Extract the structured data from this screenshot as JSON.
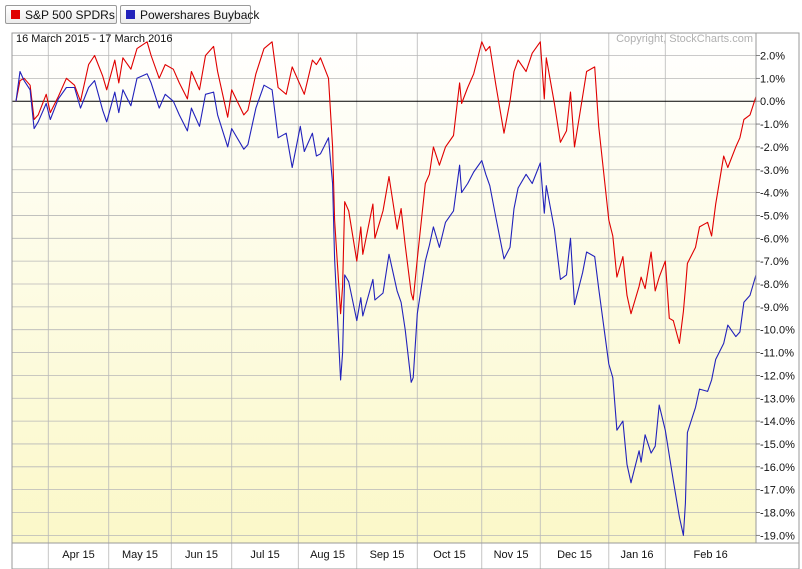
{
  "legend": [
    {
      "label": "S&P 500 SPDRs",
      "color": "#e00000"
    },
    {
      "label": "Powershares Buyback",
      "color": "#2222bb"
    }
  ],
  "date_range": "16 March 2015 - 17 March 2016",
  "copyright": "Copyright, StockCharts.com",
  "colors": {
    "grid": "#b8b8b8",
    "zero_line": "#000000",
    "bg_top": "#ffffff",
    "bg_bottom": "#fbf8c8"
  },
  "chart_data": {
    "type": "line",
    "ylim": [
      -19.5,
      2.6
    ],
    "y_ticks": [
      2,
      1,
      0,
      -1,
      -2,
      -3,
      -4,
      -5,
      -6,
      -7,
      -8,
      -9,
      -10,
      -11,
      -12,
      -13,
      -14,
      -15,
      -16,
      -17,
      -18,
      -19
    ],
    "y_tick_labels": [
      "2.0%",
      "1.0%",
      "0.0%",
      "-1.0%",
      "-2.0%",
      "-3.0%",
      "-4.0%",
      "-5.0%",
      "-6.0%",
      "-7.0%",
      "-8.0%",
      "-9.0%",
      "-10.0%",
      "-11.0%",
      "-12.0%",
      "-13.0%",
      "-14.0%",
      "-15.0%",
      "-16.0%",
      "-17.0%",
      "-18.0%",
      "-19.0%"
    ],
    "x_domain": [
      "2015-03-16",
      "2016-03-17"
    ],
    "x_gridlines": [
      "2015-04-01",
      "2015-05-01",
      "2015-06-01",
      "2015-07-01",
      "2015-08-03",
      "2015-09-01",
      "2015-10-01",
      "2015-11-02",
      "2015-12-01",
      "2016-01-04",
      "2016-02-01"
    ],
    "x_tick_labels": [
      "Apr 15",
      "May 15",
      "Jun 15",
      "Jul 15",
      "Aug 15",
      "Sep 15",
      "Oct 15",
      "Nov 15",
      "Dec 15",
      "Jan 16",
      "Feb 16"
    ],
    "series": [
      {
        "name": "S&P 500 SPDRs",
        "color": "#e00000",
        "points": [
          [
            "2015-03-16",
            0.0
          ],
          [
            "2015-03-18",
            0.9
          ],
          [
            "2015-03-20",
            1.0
          ],
          [
            "2015-03-23",
            0.7
          ],
          [
            "2015-03-25",
            -0.8
          ],
          [
            "2015-03-27",
            -0.6
          ],
          [
            "2015-03-31",
            0.3
          ],
          [
            "2015-04-02",
            -0.5
          ],
          [
            "2015-04-06",
            0.2
          ],
          [
            "2015-04-10",
            1.0
          ],
          [
            "2015-04-14",
            0.7
          ],
          [
            "2015-04-17",
            0.0
          ],
          [
            "2015-04-21",
            1.6
          ],
          [
            "2015-04-24",
            2.0
          ],
          [
            "2015-04-28",
            1.1
          ],
          [
            "2015-04-30",
            0.5
          ],
          [
            "2015-05-04",
            1.8
          ],
          [
            "2015-05-06",
            0.8
          ],
          [
            "2015-05-08",
            1.9
          ],
          [
            "2015-05-12",
            1.4
          ],
          [
            "2015-05-15",
            2.3
          ],
          [
            "2015-05-20",
            2.6
          ],
          [
            "2015-05-22",
            2.0
          ],
          [
            "2015-05-26",
            1.0
          ],
          [
            "2015-05-29",
            1.6
          ],
          [
            "2015-06-02",
            1.4
          ],
          [
            "2015-06-05",
            0.8
          ],
          [
            "2015-06-09",
            0.1
          ],
          [
            "2015-06-11",
            1.3
          ],
          [
            "2015-06-15",
            0.5
          ],
          [
            "2015-06-18",
            2.0
          ],
          [
            "2015-06-22",
            2.4
          ],
          [
            "2015-06-24",
            1.3
          ],
          [
            "2015-06-29",
            -0.7
          ],
          [
            "2015-07-01",
            0.5
          ],
          [
            "2015-07-07",
            -0.6
          ],
          [
            "2015-07-09",
            -0.4
          ],
          [
            "2015-07-13",
            1.2
          ],
          [
            "2015-07-17",
            2.3
          ],
          [
            "2015-07-21",
            2.6
          ],
          [
            "2015-07-24",
            0.6
          ],
          [
            "2015-07-28",
            0.3
          ],
          [
            "2015-07-31",
            1.5
          ],
          [
            "2015-08-04",
            0.7
          ],
          [
            "2015-08-06",
            0.3
          ],
          [
            "2015-08-10",
            1.8
          ],
          [
            "2015-08-12",
            1.6
          ],
          [
            "2015-08-14",
            1.9
          ],
          [
            "2015-08-18",
            1.0
          ],
          [
            "2015-08-20",
            -2.0
          ],
          [
            "2015-08-21",
            -5.2
          ],
          [
            "2015-08-24",
            -9.3
          ],
          [
            "2015-08-25",
            -8.1
          ],
          [
            "2015-08-26",
            -4.4
          ],
          [
            "2015-08-28",
            -4.8
          ],
          [
            "2015-09-01",
            -7.0
          ],
          [
            "2015-09-03",
            -5.5
          ],
          [
            "2015-09-04",
            -6.7
          ],
          [
            "2015-09-09",
            -4.5
          ],
          [
            "2015-09-10",
            -6.0
          ],
          [
            "2015-09-14",
            -4.8
          ],
          [
            "2015-09-17",
            -3.3
          ],
          [
            "2015-09-21",
            -5.6
          ],
          [
            "2015-09-23",
            -4.7
          ],
          [
            "2015-09-25",
            -6.3
          ],
          [
            "2015-09-28",
            -8.4
          ],
          [
            "2015-09-29",
            -8.7
          ],
          [
            "2015-10-01",
            -6.9
          ],
          [
            "2015-10-05",
            -3.6
          ],
          [
            "2015-10-07",
            -3.2
          ],
          [
            "2015-10-09",
            -2.0
          ],
          [
            "2015-10-12",
            -2.8
          ],
          [
            "2015-10-15",
            -2.0
          ],
          [
            "2015-10-19",
            -1.5
          ],
          [
            "2015-10-22",
            0.8
          ],
          [
            "2015-10-23",
            -0.1
          ],
          [
            "2015-10-26",
            0.6
          ],
          [
            "2015-10-29",
            1.2
          ],
          [
            "2015-11-02",
            2.6
          ],
          [
            "2015-11-04",
            2.2
          ],
          [
            "2015-11-06",
            2.4
          ],
          [
            "2015-11-09",
            0.7
          ],
          [
            "2015-11-13",
            -1.4
          ],
          [
            "2015-11-16",
            0.0
          ],
          [
            "2015-11-18",
            1.3
          ],
          [
            "2015-11-20",
            1.8
          ],
          [
            "2015-11-24",
            1.3
          ],
          [
            "2015-11-27",
            2.1
          ],
          [
            "2015-12-01",
            2.6
          ],
          [
            "2015-12-03",
            0.1
          ],
          [
            "2015-12-04",
            1.9
          ],
          [
            "2015-12-08",
            -0.1
          ],
          [
            "2015-12-11",
            -1.8
          ],
          [
            "2015-12-14",
            -1.3
          ],
          [
            "2015-12-16",
            0.4
          ],
          [
            "2015-12-18",
            -2.0
          ],
          [
            "2015-12-22",
            0.2
          ],
          [
            "2015-12-24",
            1.3
          ],
          [
            "2015-12-28",
            1.5
          ],
          [
            "2015-12-30",
            -1.1
          ],
          [
            "2016-01-04",
            -5.2
          ],
          [
            "2016-01-06",
            -5.9
          ],
          [
            "2016-01-08",
            -7.7
          ],
          [
            "2016-01-11",
            -6.8
          ],
          [
            "2016-01-13",
            -8.5
          ],
          [
            "2016-01-15",
            -9.3
          ],
          [
            "2016-01-19",
            -8.1
          ],
          [
            "2016-01-20",
            -7.7
          ],
          [
            "2016-01-22",
            -8.2
          ],
          [
            "2016-01-25",
            -6.6
          ],
          [
            "2016-01-27",
            -8.3
          ],
          [
            "2016-01-29",
            -7.7
          ],
          [
            "2016-02-01",
            -7.0
          ],
          [
            "2016-02-03",
            -9.5
          ],
          [
            "2016-02-05",
            -9.6
          ],
          [
            "2016-02-08",
            -10.6
          ],
          [
            "2016-02-10",
            -9.2
          ],
          [
            "2016-02-11",
            -8.2
          ],
          [
            "2016-02-12",
            -7.1
          ],
          [
            "2016-02-16",
            -6.4
          ],
          [
            "2016-02-18",
            -5.5
          ],
          [
            "2016-02-22",
            -5.3
          ],
          [
            "2016-02-24",
            -5.9
          ],
          [
            "2016-02-26",
            -4.5
          ],
          [
            "2016-03-01",
            -2.4
          ],
          [
            "2016-03-03",
            -2.9
          ],
          [
            "2016-03-07",
            -2.0
          ],
          [
            "2016-03-09",
            -1.6
          ],
          [
            "2016-03-11",
            -0.8
          ],
          [
            "2016-03-14",
            -0.6
          ],
          [
            "2016-03-17",
            0.2
          ]
        ]
      },
      {
        "name": "Powershares Buyback",
        "color": "#2222bb",
        "points": [
          [
            "2015-03-16",
            0.0
          ],
          [
            "2015-03-18",
            1.3
          ],
          [
            "2015-03-20",
            0.9
          ],
          [
            "2015-03-23",
            0.5
          ],
          [
            "2015-03-25",
            -1.2
          ],
          [
            "2015-03-27",
            -0.9
          ],
          [
            "2015-03-31",
            -0.1
          ],
          [
            "2015-04-02",
            -0.8
          ],
          [
            "2015-04-06",
            0.1
          ],
          [
            "2015-04-10",
            0.6
          ],
          [
            "2015-04-14",
            0.6
          ],
          [
            "2015-04-17",
            -0.3
          ],
          [
            "2015-04-21",
            0.6
          ],
          [
            "2015-04-24",
            0.9
          ],
          [
            "2015-04-28",
            -0.4
          ],
          [
            "2015-04-30",
            -0.9
          ],
          [
            "2015-05-04",
            0.4
          ],
          [
            "2015-05-06",
            -0.5
          ],
          [
            "2015-05-08",
            0.5
          ],
          [
            "2015-05-12",
            -0.2
          ],
          [
            "2015-05-15",
            1.0
          ],
          [
            "2015-05-20",
            1.2
          ],
          [
            "2015-05-22",
            0.8
          ],
          [
            "2015-05-26",
            -0.3
          ],
          [
            "2015-05-29",
            0.3
          ],
          [
            "2015-06-02",
            0.0
          ],
          [
            "2015-06-05",
            -0.6
          ],
          [
            "2015-06-09",
            -1.3
          ],
          [
            "2015-06-11",
            -0.3
          ],
          [
            "2015-06-15",
            -1.1
          ],
          [
            "2015-06-18",
            0.3
          ],
          [
            "2015-06-22",
            0.4
          ],
          [
            "2015-06-24",
            -0.6
          ],
          [
            "2015-06-29",
            -2.0
          ],
          [
            "2015-07-01",
            -1.2
          ],
          [
            "2015-07-07",
            -2.1
          ],
          [
            "2015-07-09",
            -1.9
          ],
          [
            "2015-07-13",
            -0.3
          ],
          [
            "2015-07-17",
            0.7
          ],
          [
            "2015-07-21",
            0.5
          ],
          [
            "2015-07-24",
            -1.6
          ],
          [
            "2015-07-28",
            -1.4
          ],
          [
            "2015-07-31",
            -2.9
          ],
          [
            "2015-08-04",
            -1.1
          ],
          [
            "2015-08-06",
            -2.2
          ],
          [
            "2015-08-10",
            -1.4
          ],
          [
            "2015-08-12",
            -2.4
          ],
          [
            "2015-08-14",
            -2.3
          ],
          [
            "2015-08-18",
            -1.6
          ],
          [
            "2015-08-20",
            -3.6
          ],
          [
            "2015-08-21",
            -6.9
          ],
          [
            "2015-08-24",
            -12.2
          ],
          [
            "2015-08-25",
            -11.0
          ],
          [
            "2015-08-26",
            -7.6
          ],
          [
            "2015-08-28",
            -7.9
          ],
          [
            "2015-09-01",
            -9.6
          ],
          [
            "2015-09-03",
            -8.6
          ],
          [
            "2015-09-04",
            -9.4
          ],
          [
            "2015-09-09",
            -7.8
          ],
          [
            "2015-09-10",
            -8.7
          ],
          [
            "2015-09-14",
            -8.4
          ],
          [
            "2015-09-17",
            -6.7
          ],
          [
            "2015-09-21",
            -8.3
          ],
          [
            "2015-09-23",
            -8.8
          ],
          [
            "2015-09-25",
            -10.0
          ],
          [
            "2015-09-28",
            -12.3
          ],
          [
            "2015-09-29",
            -12.1
          ],
          [
            "2015-10-01",
            -9.3
          ],
          [
            "2015-10-05",
            -7.0
          ],
          [
            "2015-10-07",
            -6.3
          ],
          [
            "2015-10-09",
            -5.5
          ],
          [
            "2015-10-12",
            -6.4
          ],
          [
            "2015-10-15",
            -5.3
          ],
          [
            "2015-10-19",
            -4.8
          ],
          [
            "2015-10-22",
            -2.8
          ],
          [
            "2015-10-23",
            -4.0
          ],
          [
            "2015-10-26",
            -3.6
          ],
          [
            "2015-10-29",
            -3.1
          ],
          [
            "2015-11-02",
            -2.6
          ],
          [
            "2015-11-04",
            -3.2
          ],
          [
            "2015-11-06",
            -3.7
          ],
          [
            "2015-11-09",
            -5.1
          ],
          [
            "2015-11-13",
            -6.9
          ],
          [
            "2015-11-16",
            -6.4
          ],
          [
            "2015-11-18",
            -4.7
          ],
          [
            "2015-11-20",
            -3.8
          ],
          [
            "2015-11-24",
            -3.2
          ],
          [
            "2015-11-27",
            -3.6
          ],
          [
            "2015-12-01",
            -2.7
          ],
          [
            "2015-12-03",
            -4.9
          ],
          [
            "2015-12-04",
            -3.7
          ],
          [
            "2015-12-08",
            -5.6
          ],
          [
            "2015-12-11",
            -7.8
          ],
          [
            "2015-12-14",
            -7.6
          ],
          [
            "2015-12-16",
            -6.0
          ],
          [
            "2015-12-18",
            -8.9
          ],
          [
            "2015-12-22",
            -7.5
          ],
          [
            "2015-12-24",
            -6.6
          ],
          [
            "2015-12-28",
            -6.8
          ],
          [
            "2015-12-30",
            -8.2
          ],
          [
            "2016-01-04",
            -11.5
          ],
          [
            "2016-01-06",
            -12.1
          ],
          [
            "2016-01-08",
            -14.4
          ],
          [
            "2016-01-11",
            -14.0
          ],
          [
            "2016-01-13",
            -15.9
          ],
          [
            "2016-01-15",
            -16.7
          ],
          [
            "2016-01-19",
            -15.3
          ],
          [
            "2016-01-20",
            -15.8
          ],
          [
            "2016-01-22",
            -14.6
          ],
          [
            "2016-01-25",
            -15.4
          ],
          [
            "2016-01-27",
            -15.1
          ],
          [
            "2016-01-29",
            -13.3
          ],
          [
            "2016-02-01",
            -14.4
          ],
          [
            "2016-02-03",
            -15.5
          ],
          [
            "2016-02-05",
            -16.6
          ],
          [
            "2016-02-08",
            -18.2
          ],
          [
            "2016-02-10",
            -19.0
          ],
          [
            "2016-02-11",
            -17.6
          ],
          [
            "2016-02-12",
            -14.5
          ],
          [
            "2016-02-16",
            -13.4
          ],
          [
            "2016-02-18",
            -12.6
          ],
          [
            "2016-02-22",
            -12.7
          ],
          [
            "2016-02-24",
            -12.2
          ],
          [
            "2016-02-26",
            -11.3
          ],
          [
            "2016-03-01",
            -10.6
          ],
          [
            "2016-03-03",
            -9.8
          ],
          [
            "2016-03-07",
            -10.3
          ],
          [
            "2016-03-09",
            -10.1
          ],
          [
            "2016-03-11",
            -8.8
          ],
          [
            "2016-03-14",
            -8.5
          ],
          [
            "2016-03-17",
            -7.6
          ]
        ]
      }
    ]
  }
}
